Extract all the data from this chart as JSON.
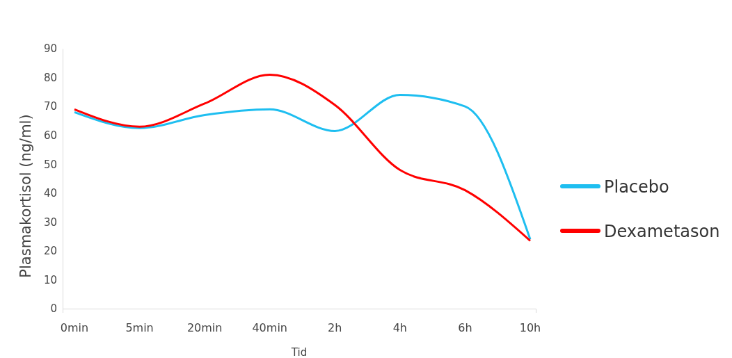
{
  "chart_data": {
    "type": "line",
    "xlabel": "Tid",
    "ylabel": "Plasmakortisol (ng/ml)",
    "categories": [
      "0min",
      "5min",
      "20min",
      "40min",
      "2h",
      "4h",
      "6h",
      "10h"
    ],
    "series": [
      {
        "name": "Placebo",
        "color": "#1ebef0",
        "values": [
          68,
          62.5,
          67,
          69,
          61.5,
          74,
          70,
          24
        ]
      },
      {
        "name": "Dexametason",
        "color": "#ff0000",
        "values": [
          69,
          63,
          71,
          81,
          70.5,
          48,
          41,
          23.5
        ]
      }
    ],
    "ylim": [
      0,
      90
    ],
    "yticks": [
      0,
      10,
      20,
      30,
      40,
      50,
      60,
      70,
      80,
      90
    ],
    "grid": false,
    "legend": "right",
    "marker": "none",
    "line_style": "solid"
  }
}
